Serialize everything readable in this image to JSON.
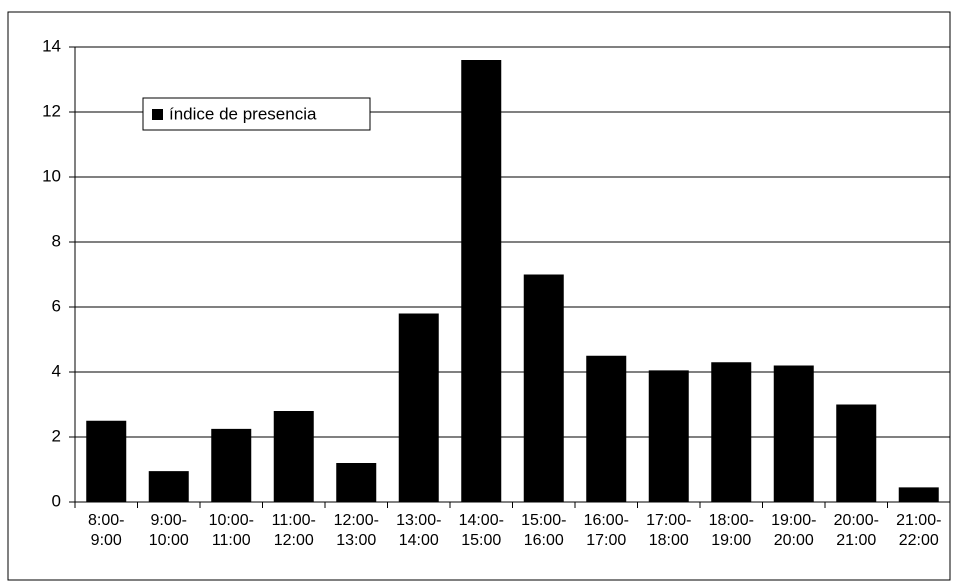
{
  "chart_data": {
    "type": "bar",
    "categories": [
      "8:00-\n9:00",
      "9:00-\n10:00",
      "10:00-\n11:00",
      "11:00-\n12:00",
      "12:00-\n13:00",
      "13:00-\n14:00",
      "14:00-\n15:00",
      "15:00-\n16:00",
      "16:00-\n17:00",
      "17:00-\n18:00",
      "18:00-\n19:00",
      "19:00-\n20:00",
      "20:00-\n21:00",
      "21:00-\n22:00"
    ],
    "series": [
      {
        "name": "índice de presencia",
        "color": "#000000",
        "values": [
          2.5,
          0.95,
          2.25,
          2.8,
          1.2,
          5.8,
          13.6,
          7.0,
          4.5,
          4.05,
          4.3,
          4.2,
          3.0,
          0.45
        ]
      }
    ],
    "ylim": [
      0,
      14
    ],
    "yticks": [
      0,
      2,
      4,
      6,
      8,
      10,
      12,
      14
    ],
    "grid": true,
    "legend": "upper left"
  }
}
